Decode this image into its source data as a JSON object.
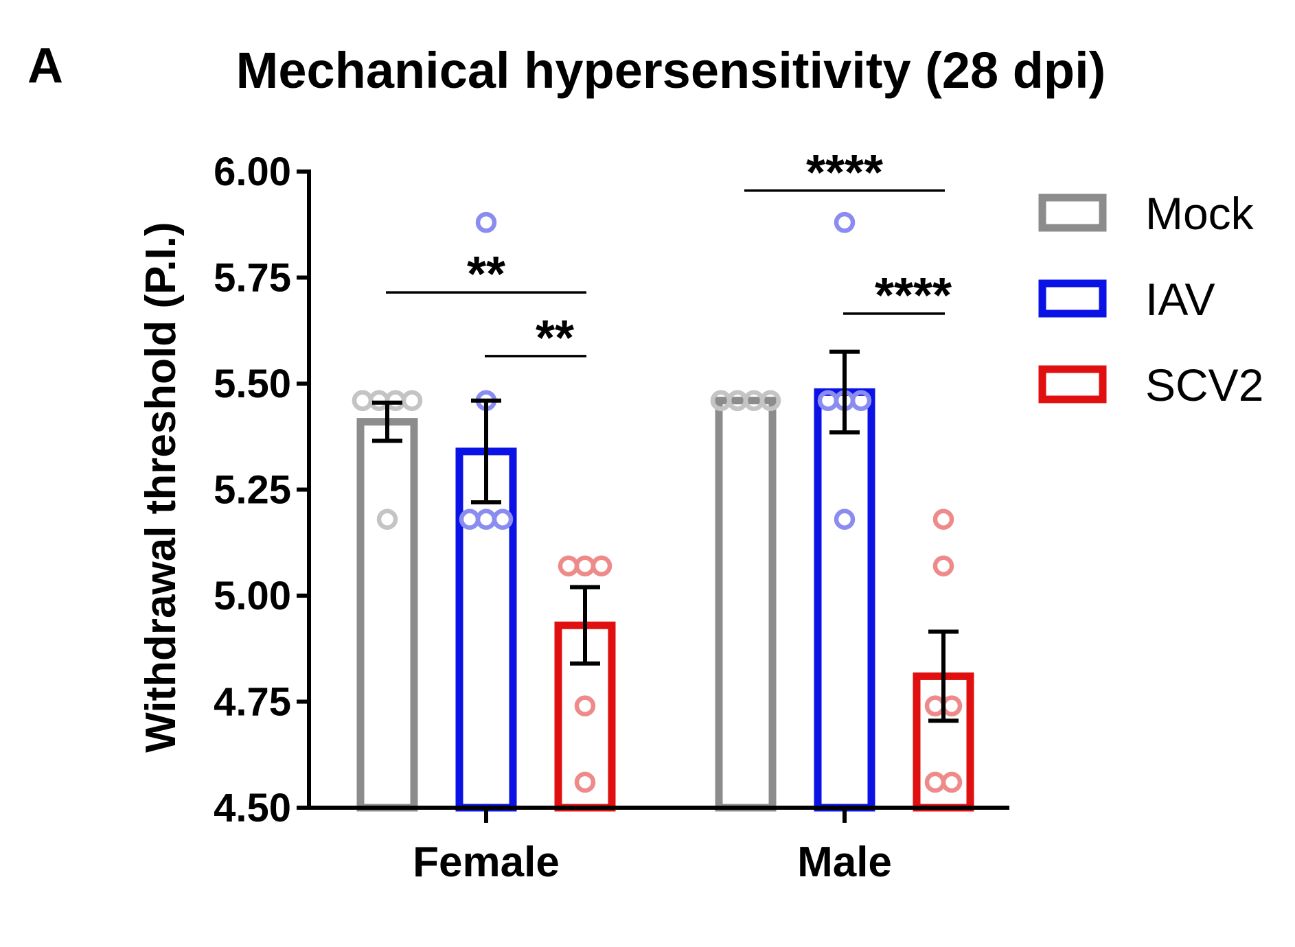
{
  "panel_label": "A",
  "chart_data": {
    "type": "bar",
    "title": "Mechanical hypersensitivity (28 dpi)",
    "xlabel": "",
    "ylabel": "Withdrawal threshold (P.I.)",
    "ylim": [
      4.5,
      6.0
    ],
    "yticks": [
      "4.50",
      "4.75",
      "5.00",
      "5.25",
      "5.50",
      "5.75",
      "6.00"
    ],
    "ytick_values": [
      4.5,
      4.75,
      5.0,
      5.25,
      5.5,
      5.75,
      6.0
    ],
    "categories": [
      "Female",
      "Male"
    ],
    "legend_position": "right",
    "series": [
      {
        "name": "Mock",
        "color": "#8c8c8c",
        "point_color": "#c4c4c4",
        "values": [
          5.41,
          5.46
        ],
        "error": [
          0.045,
          0.0
        ],
        "points": [
          [
            5.46,
            5.46,
            5.46,
            5.46,
            5.46,
            5.18
          ],
          [
            5.46,
            5.46,
            5.46,
            5.46,
            5.46,
            5.46
          ]
        ]
      },
      {
        "name": "IAV",
        "color": "#0a12e6",
        "point_color": "#8a8cf0",
        "values": [
          5.34,
          5.48
        ],
        "error": [
          0.12,
          0.095
        ],
        "points": [
          [
            5.88,
            5.46,
            5.18,
            5.18,
            5.18
          ],
          [
            5.88,
            5.46,
            5.46,
            5.46,
            5.18
          ]
        ]
      },
      {
        "name": "SCV2",
        "color": "#e01010",
        "point_color": "#ee8a8a",
        "values": [
          4.93,
          4.81
        ],
        "error": [
          0.09,
          0.105
        ],
        "points": [
          [
            5.07,
            5.07,
            5.07,
            4.74,
            4.56
          ],
          [
            5.18,
            5.07,
            4.74,
            4.74,
            4.56,
            4.56
          ]
        ]
      }
    ],
    "annotations": [
      {
        "label": "**",
        "category": "Female",
        "from": "Mock",
        "to": "SCV2",
        "y": 5.715
      },
      {
        "label": "**",
        "category": "Female",
        "from": "IAV",
        "to": "SCV2",
        "y": 5.565
      },
      {
        "label": "****",
        "category": "Male",
        "from": "Mock",
        "to": "SCV2",
        "y": 5.955
      },
      {
        "label": "****",
        "category": "Male",
        "from": "IAV",
        "to": "SCV2",
        "y": 5.665
      }
    ]
  }
}
